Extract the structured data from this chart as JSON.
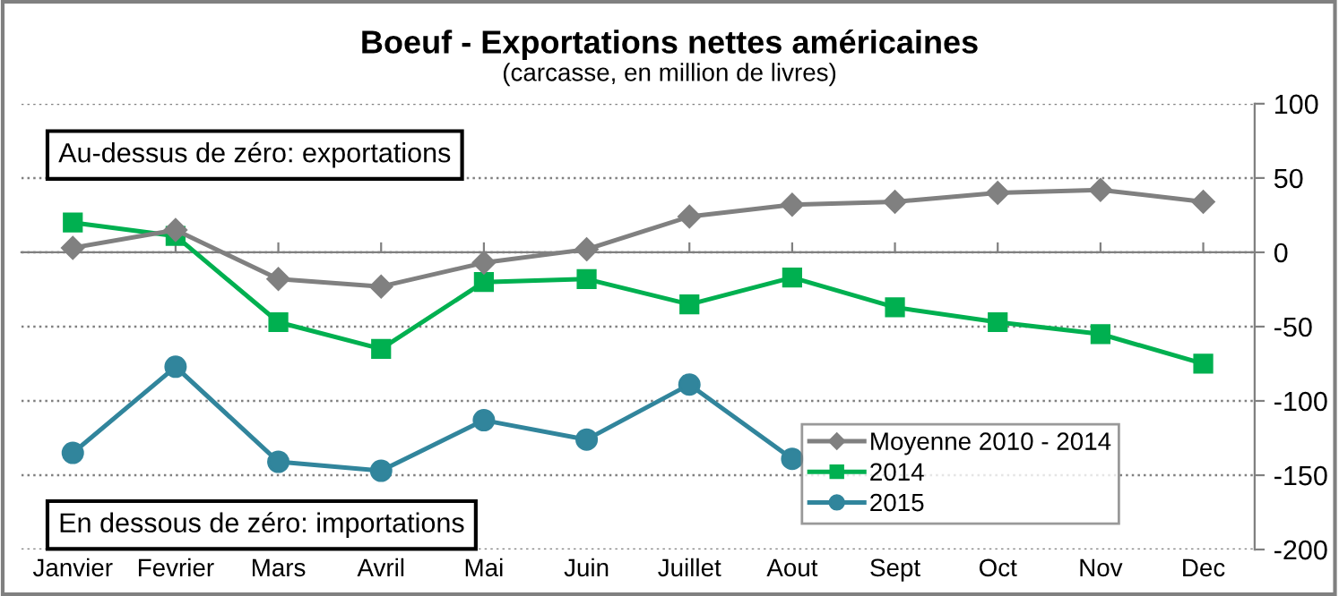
{
  "chart_data": {
    "type": "line",
    "title": "Boeuf - Exportations nettes américaines",
    "subtitle": "(carcasse, en million de livres)",
    "categories": [
      "Janvier",
      "Fevrier",
      "Mars",
      "Avril",
      "Mai",
      "Juin",
      "Juillet",
      "Aout",
      "Sept",
      "Oct",
      "Nov",
      "Dec"
    ],
    "series": [
      {
        "name": "Moyenne 2010 - 2014",
        "color": "#808080",
        "marker": "diamond",
        "values": [
          3,
          15,
          -18,
          -23,
          -7,
          2,
          24,
          32,
          34,
          40,
          42,
          34
        ]
      },
      {
        "name": "2014",
        "color": "#00b050",
        "marker": "square",
        "values": [
          20,
          11,
          -47,
          -65,
          -20,
          -18,
          -35,
          -17,
          -37,
          -47,
          -55,
          -75
        ]
      },
      {
        "name": "2015",
        "color": "#31859c",
        "marker": "circle",
        "values": [
          -135,
          -77,
          -141,
          -147,
          -113,
          -126,
          -89,
          -139,
          null,
          null,
          null,
          null
        ]
      }
    ],
    "ylim": [
      -200,
      100
    ],
    "yticks": [
      -200,
      -150,
      -100,
      -50,
      0,
      50,
      100
    ],
    "grid": "y",
    "legend": "bottom right",
    "annotations": [
      "Au-dessus de zéro: exportations",
      "En dessous de zéro: importations"
    ]
  }
}
